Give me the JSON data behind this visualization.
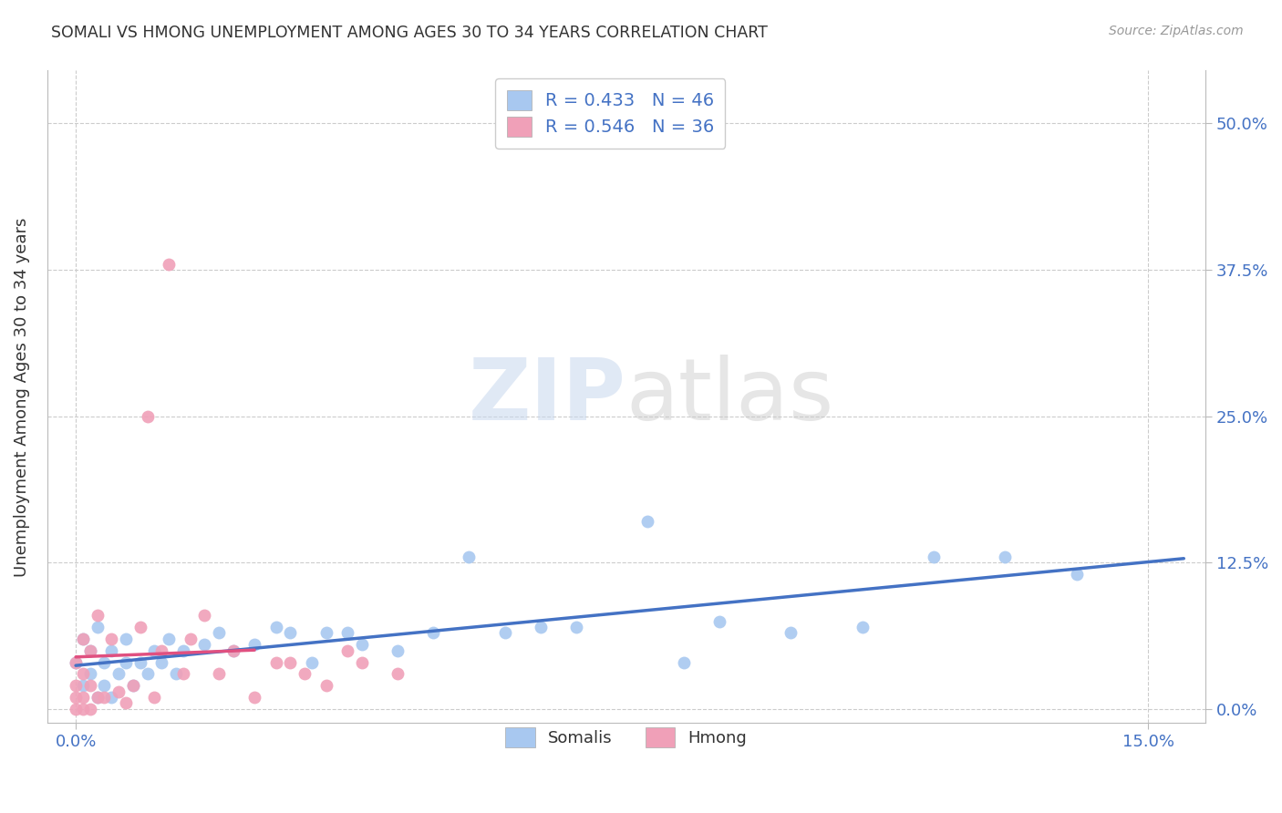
{
  "title": "SOMALI VS HMONG UNEMPLOYMENT AMONG AGES 30 TO 34 YEARS CORRELATION CHART",
  "source": "Source: ZipAtlas.com",
  "ylabel": "Unemployment Among Ages 30 to 34 years",
  "xlim": [
    -0.004,
    0.158
  ],
  "ylim": [
    -0.012,
    0.545
  ],
  "yticks": [
    0.0,
    0.125,
    0.25,
    0.375,
    0.5
  ],
  "xticks": [
    0.0,
    0.15
  ],
  "grid_color": "#cccccc",
  "somali_color": "#a8c8f0",
  "hmong_color": "#f0a0b8",
  "somali_line_color": "#4472c4",
  "hmong_line_color": "#e05080",
  "hmong_line_dashed": true,
  "watermark_zip": "ZIP",
  "watermark_atlas": "atlas",
  "legend_r_somali": "R = 0.433",
  "legend_n_somali": "N = 46",
  "legend_r_hmong": "R = 0.546",
  "legend_n_hmong": "N = 36",
  "legend_color": "#4472c4",
  "somali_x": [
    0.0,
    0.001,
    0.001,
    0.002,
    0.002,
    0.003,
    0.003,
    0.004,
    0.004,
    0.005,
    0.005,
    0.006,
    0.007,
    0.007,
    0.008,
    0.009,
    0.01,
    0.011,
    0.012,
    0.013,
    0.014,
    0.015,
    0.018,
    0.02,
    0.022,
    0.025,
    0.028,
    0.03,
    0.033,
    0.035,
    0.038,
    0.04,
    0.045,
    0.05,
    0.055,
    0.06,
    0.065,
    0.07,
    0.08,
    0.085,
    0.09,
    0.1,
    0.11,
    0.12,
    0.13,
    0.14
  ],
  "somali_y": [
    0.04,
    0.02,
    0.06,
    0.03,
    0.05,
    0.01,
    0.07,
    0.02,
    0.04,
    0.01,
    0.05,
    0.03,
    0.04,
    0.06,
    0.02,
    0.04,
    0.03,
    0.05,
    0.04,
    0.06,
    0.03,
    0.05,
    0.055,
    0.065,
    0.05,
    0.055,
    0.07,
    0.065,
    0.04,
    0.065,
    0.065,
    0.055,
    0.05,
    0.065,
    0.13,
    0.065,
    0.07,
    0.07,
    0.16,
    0.04,
    0.075,
    0.065,
    0.07,
    0.13,
    0.13,
    0.115
  ],
  "hmong_x": [
    0.0,
    0.0,
    0.0,
    0.0,
    0.001,
    0.001,
    0.001,
    0.001,
    0.002,
    0.002,
    0.002,
    0.003,
    0.003,
    0.004,
    0.005,
    0.006,
    0.007,
    0.008,
    0.009,
    0.01,
    0.011,
    0.012,
    0.013,
    0.015,
    0.016,
    0.018,
    0.02,
    0.022,
    0.025,
    0.028,
    0.03,
    0.032,
    0.035,
    0.038,
    0.04,
    0.045
  ],
  "hmong_y": [
    0.0,
    0.01,
    0.02,
    0.04,
    0.0,
    0.01,
    0.03,
    0.06,
    0.0,
    0.02,
    0.05,
    0.01,
    0.08,
    0.01,
    0.06,
    0.015,
    0.005,
    0.02,
    0.07,
    0.25,
    0.01,
    0.05,
    0.38,
    0.03,
    0.06,
    0.08,
    0.03,
    0.05,
    0.01,
    0.04,
    0.04,
    0.03,
    0.02,
    0.05,
    0.04,
    0.03
  ],
  "somali_line_x": [
    0.0,
    0.155
  ],
  "hmong_line_x": [
    0.0,
    0.025
  ]
}
